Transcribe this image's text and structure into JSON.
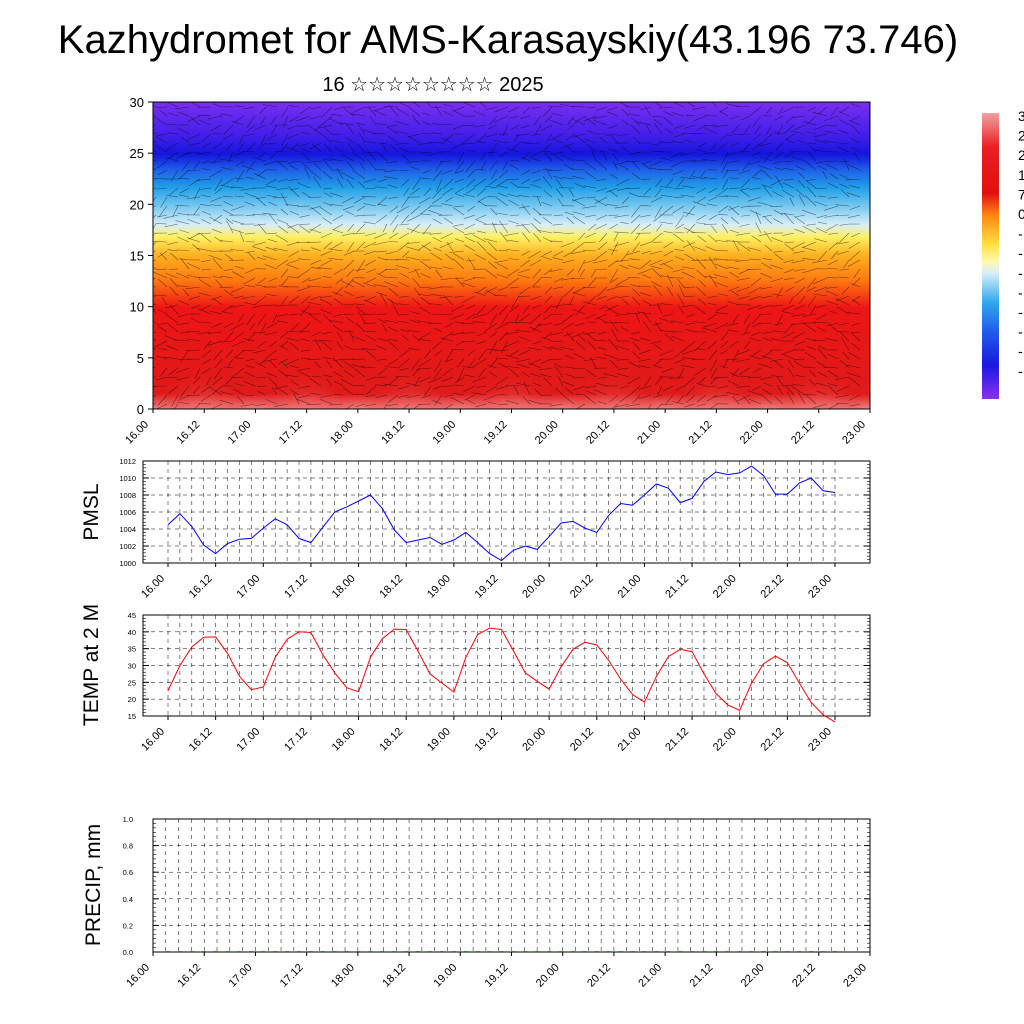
{
  "title": "Kazhydromet for AMS-Karasayskiy(43.196 73.746)",
  "subtitle": "16 ☆☆☆☆☆☆☆☆ 2025",
  "time_labels": [
    "16.00",
    "16.12",
    "17.00",
    "17.12",
    "18.00",
    "18.12",
    "19.00",
    "19.12",
    "20.00",
    "20.12",
    "21.00",
    "21.12",
    "22.00",
    "22.12",
    "23.00"
  ],
  "chart_data": [
    {
      "type": "heatmap",
      "x_ticks": [
        "16.00",
        "16.12",
        "17.00",
        "17.12",
        "18.00",
        "18.12",
        "19.00",
        "19.12",
        "20.00",
        "20.12",
        "21.00",
        "21.12",
        "22.00",
        "22.12",
        "23.00"
      ],
      "y_ticks": [
        0,
        5,
        10,
        15,
        20,
        25,
        30
      ],
      "ylim": [
        0,
        30
      ],
      "colorbar_partial_labels": [
        "3",
        "2",
        "2",
        "1",
        "7",
        "0",
        "-",
        "-",
        "-",
        "-",
        "-",
        "-",
        "-",
        "-"
      ],
      "overlay": "wind vectors"
    },
    {
      "type": "line",
      "ylabel": "PMSL",
      "ylim": [
        1000,
        1012
      ],
      "y_ticks": [
        1000,
        1002,
        1004,
        1006,
        1008,
        1010,
        1012
      ],
      "x_ticks": [
        "16.00",
        "16.12",
        "17.00",
        "17.12",
        "18.00",
        "18.12",
        "19.00",
        "19.12",
        "20.00",
        "20.12",
        "21.00",
        "21.12",
        "22.00",
        "22.12",
        "23.00"
      ],
      "series": [
        {
          "color": "#0000ff",
          "values": [
            1004.5,
            1005.8,
            1004.3,
            1002.1,
            1001.1,
            1002.3,
            1002.8,
            1002.9,
            1004.1,
            1005.2,
            1004.5,
            1002.9,
            1002.4,
            1004.2,
            1006.0,
            1006.6,
            1007.3,
            1008.0,
            1006.4,
            1003.9,
            1002.4,
            1002.7,
            1003.0,
            1002.2,
            1002.7,
            1003.6,
            1002.4,
            1001.1,
            1000.3,
            1001.5,
            1002.0,
            1001.6,
            1003.1,
            1004.7,
            1004.9,
            1004.1,
            1003.6,
            1005.6,
            1007.0,
            1006.8,
            1008.0,
            1009.3,
            1008.8,
            1007.1,
            1007.6,
            1009.6,
            1010.7,
            1010.4,
            1010.6,
            1011.4,
            1010.3,
            1008.1,
            1008.1,
            1009.4,
            1010.0,
            1008.5,
            1008.3
          ]
        }
      ]
    },
    {
      "type": "line",
      "ylabel": "TEMP at 2 M",
      "ylim": [
        15,
        45
      ],
      "y_ticks": [
        15,
        20,
        25,
        30,
        35,
        40,
        45
      ],
      "x_ticks": [
        "16.00",
        "16.12",
        "17.00",
        "17.12",
        "18.00",
        "18.12",
        "19.00",
        "19.12",
        "20.00",
        "20.12",
        "21.00",
        "21.12",
        "22.00",
        "22.12",
        "23.00"
      ],
      "series": [
        {
          "color": "#ff0000",
          "values": [
            22.5,
            30.0,
            35.5,
            38.4,
            38.5,
            33.6,
            26.8,
            22.8,
            23.6,
            32.4,
            37.8,
            40.0,
            39.8,
            33.2,
            27.8,
            23.4,
            22.2,
            32.5,
            38.0,
            40.8,
            40.7,
            34.2,
            27.5,
            24.8,
            22.1,
            32.4,
            39.2,
            41.1,
            40.7,
            34.4,
            27.8,
            25.3,
            23.0,
            29.6,
            34.8,
            36.9,
            36.1,
            31.5,
            26.0,
            21.4,
            19.1,
            26.7,
            32.6,
            34.8,
            34.1,
            27.5,
            21.7,
            18.3,
            16.7,
            24.8,
            30.5,
            32.8,
            30.8,
            24.8,
            19.0,
            15.4,
            13.2
          ]
        }
      ]
    },
    {
      "type": "bar",
      "ylabel": "PRECIP, mm",
      "ylim": [
        0,
        1
      ],
      "y_ticks": [
        "0.0",
        "0.2",
        "0.4",
        "0.6",
        "0.8",
        "1.0"
      ],
      "x_ticks": [
        "16.00",
        "16.12",
        "17.00",
        "17.12",
        "18.00",
        "18.12",
        "19.00",
        "19.12",
        "20.00",
        "20.12",
        "21.00",
        "21.12",
        "22.00",
        "22.12",
        "23.00"
      ],
      "values": [
        0,
        0,
        0,
        0,
        0,
        0,
        0,
        0,
        0,
        0,
        0,
        0,
        0,
        0,
        0,
        0,
        0,
        0,
        0,
        0,
        0,
        0,
        0,
        0,
        0,
        0,
        0,
        0,
        0,
        0,
        0,
        0,
        0,
        0,
        0,
        0,
        0,
        0,
        0,
        0,
        0,
        0,
        0,
        0,
        0,
        0,
        0,
        0,
        0,
        0,
        0,
        0,
        0,
        0,
        0,
        0,
        0
      ]
    }
  ]
}
